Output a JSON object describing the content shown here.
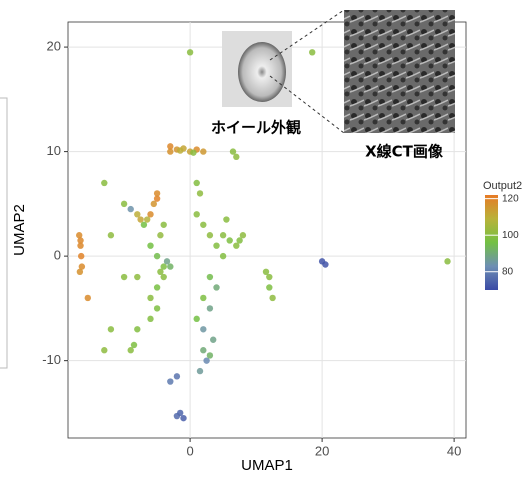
{
  "chart_data": {
    "type": "scatter",
    "xlabel": "UMAP1",
    "ylabel": "UMAP2",
    "xlim": [
      -18.5,
      41.8
    ],
    "ylim": [
      -17.4,
      22.4
    ],
    "xticks": [
      0,
      20,
      40
    ],
    "yticks": [
      -10,
      0,
      10,
      20
    ],
    "grid": true,
    "x": [
      -16.8,
      -16.6,
      -16.5,
      -16.4,
      -16.7,
      -16.6,
      -15.5,
      -13,
      -12,
      -10,
      -9,
      -8,
      -7.5,
      -7,
      -6,
      -5.5,
      -5,
      -5,
      -4,
      -4.5,
      -6.5,
      -3,
      -3,
      -2,
      -1,
      0,
      1,
      2,
      -1.5,
      0.5,
      0,
      18.5,
      6.5,
      7,
      -4,
      -5,
      -3,
      -4,
      -5,
      -3.5,
      -10,
      -8,
      -8,
      -9,
      -8.5,
      -12,
      -13,
      -6,
      -5,
      -6,
      -2,
      -3,
      -1.5,
      -1,
      -2,
      2,
      3,
      4,
      5,
      6,
      7,
      8,
      5,
      3,
      4,
      2,
      3,
      1,
      2,
      2,
      2.5,
      1.5,
      3,
      1,
      1.5,
      1,
      12,
      12,
      12.5,
      11.5,
      20,
      20.5,
      39,
      5.5,
      -6,
      -4.5,
      3.5,
      7.5
    ],
    "y": [
      2,
      1,
      0,
      -1,
      -1.5,
      1.5,
      -4,
      7,
      2,
      5,
      4.5,
      4,
      3.5,
      3,
      4,
      5,
      5.5,
      6,
      3,
      2,
      3.5,
      10,
      10.5,
      10.2,
      10.3,
      10,
      10.2,
      10,
      10.1,
      9.9,
      19.5,
      19.5,
      10,
      9.5,
      -1,
      0,
      -1,
      -2,
      -3,
      -0.5,
      -2,
      -2,
      -7,
      -9,
      -8.5,
      -7,
      -9,
      -4,
      -5,
      -6,
      -11.5,
      -12,
      -15,
      -15.5,
      -15.3,
      3,
      2,
      1,
      2,
      1.5,
      1,
      2,
      0,
      -2,
      -3,
      -4,
      -5,
      -6,
      -7,
      -9,
      -10,
      -11,
      -9.5,
      4,
      6,
      7,
      -2,
      -3,
      -4,
      -1.5,
      -0.5,
      -0.8,
      -0.5,
      3.5,
      1,
      -1.5,
      -8,
      1.5
    ],
    "values": [
      118,
      119,
      120,
      118,
      117,
      119,
      118,
      100,
      101,
      100,
      84,
      110,
      112,
      96,
      118,
      116,
      120,
      118,
      100,
      102,
      108,
      117,
      119,
      116,
      112,
      113,
      118,
      115,
      110,
      100,
      100,
      100,
      100,
      101,
      98,
      95,
      92,
      100,
      97,
      88,
      100,
      101,
      99,
      100,
      98,
      100,
      101,
      100,
      98,
      99,
      78,
      79,
      75,
      74,
      76,
      100,
      101,
      99,
      100,
      98,
      100,
      101,
      99,
      95,
      90,
      98,
      88,
      96,
      85,
      90,
      82,
      86,
      92,
      100,
      101,
      99,
      100,
      98,
      101,
      100,
      72,
      72,
      100,
      100,
      96,
      100,
      88,
      99
    ],
    "colorbar": {
      "title": "Output2",
      "clim": [
        70,
        122
      ],
      "ticks": [
        80,
        100,
        120
      ],
      "colors": [
        "#3a4aa6",
        "#6e8fb3",
        "#73c043",
        "#b9b23a",
        "#e77a25"
      ]
    },
    "annotations": [
      "ホイール外観",
      "X線CT画像"
    ]
  }
}
